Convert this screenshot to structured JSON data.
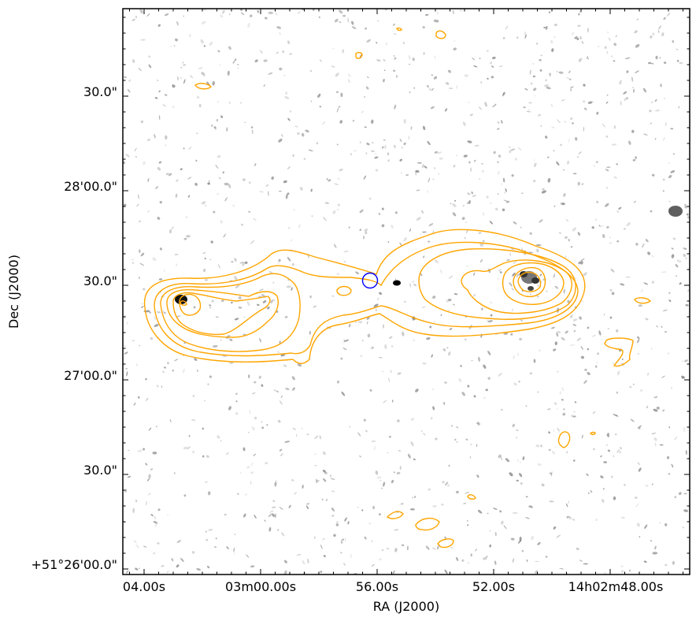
{
  "figure": {
    "xlabel": "RA (J2000)",
    "ylabel": "Dec (J2000)",
    "x_ticks": [
      "04.00s",
      "03m00.00s",
      "56.00s",
      "52.00s",
      "14h02m48.00s"
    ],
    "y_ticks": [
      "+51°26'00.0\"",
      "30.0\"",
      "27'00.0\"",
      "30.0\"",
      "28'00.0\"",
      "30.0\""
    ]
  },
  "colors": {
    "contour": "#ffa500",
    "marker": "#0000ff",
    "background": "#ffffff",
    "noise": "#555555"
  }
}
